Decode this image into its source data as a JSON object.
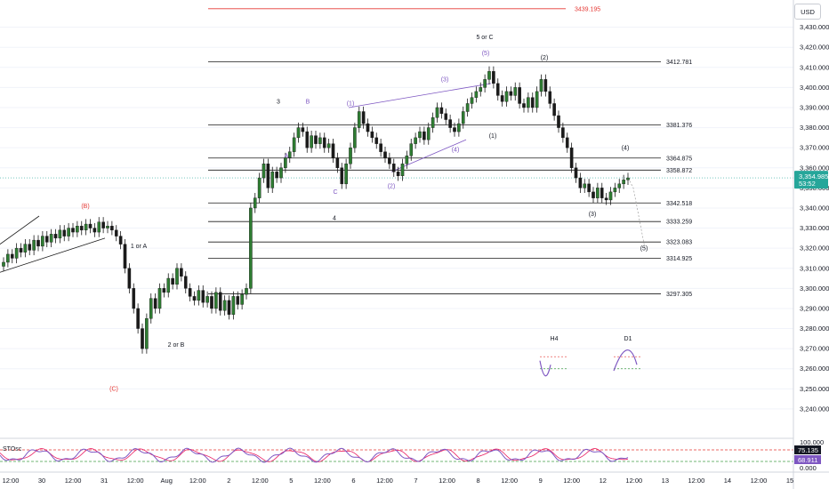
{
  "colors": {
    "up": "#1a1a1a",
    "down": "#1a1a1a",
    "up_fill": "#2e7d32",
    "level": "#1a1a1a",
    "red_level": "#e53935",
    "wave_black": "#131722",
    "wave_purple": "#7e57c2",
    "wave_red": "#e53935",
    "price_tag": "#26a69a",
    "osc_line": "#7e57c2",
    "osc_signal": "#e91e63",
    "osc_upper": "#e53935",
    "osc_lower": "#43a047"
  },
  "currency": "USD",
  "chart_data": {
    "type": "candlestick",
    "title": "",
    "xlabel": "",
    "ylabel": "",
    "ylim": [
      3232,
      3440
    ],
    "price_ticks": [
      "3,430.000",
      "3,420.000",
      "3,410.000",
      "3,400.000",
      "3,390.000",
      "3,380.000",
      "3,370.000",
      "3,360.000",
      "3,350.000",
      "3,340.000",
      "3,330.000",
      "3,320.000",
      "3,310.000",
      "3,300.000",
      "3,290.000",
      "3,280.000",
      "3,270.000",
      "3,260.000",
      "3,250.000",
      "3,240.000"
    ],
    "price_tick_values": [
      3430,
      3420,
      3410,
      3400,
      3390,
      3380,
      3370,
      3360,
      3350,
      3340,
      3330,
      3320,
      3310,
      3300,
      3290,
      3280,
      3270,
      3260,
      3250,
      3240
    ],
    "time_ticks": [
      "12:00",
      "30",
      "12:00",
      "31",
      "12:00",
      "Aug",
      "12:00",
      "2",
      "12:00",
      "5",
      "12:00",
      "6",
      "12:00",
      "7",
      "12:00",
      "8",
      "12:00",
      "9",
      "12:00",
      "12",
      "12:00",
      "13",
      "12:00",
      "14",
      "12:00",
      "15"
    ],
    "current_price": "3,354.985",
    "current_price_value": 3354.985,
    "countdown": "53:52",
    "levels": [
      {
        "label": "3439.195",
        "value": 3439.195,
        "color": "red"
      },
      {
        "label": "3412.781",
        "value": 3412.781
      },
      {
        "label": "3381.376",
        "value": 3381.376
      },
      {
        "label": "3364.875",
        "value": 3364.875
      },
      {
        "label": "3358.872",
        "value": 3358.872
      },
      {
        "label": "3342.518",
        "value": 3342.518
      },
      {
        "label": "3333.259",
        "value": 3333.259
      },
      {
        "label": "3323.083",
        "value": 3323.083
      },
      {
        "label": "3314.925",
        "value": 3314.925
      },
      {
        "label": "3297.305",
        "value": 3297.305
      }
    ],
    "closes": [
      3313,
      3317,
      3315,
      3320,
      3318,
      3322,
      3319,
      3324,
      3321,
      3326,
      3323,
      3327,
      3325,
      3329,
      3326,
      3330,
      3328,
      3331,
      3329,
      3332,
      3330,
      3328,
      3333,
      3330,
      3331,
      3329,
      3326,
      3322,
      3310,
      3300,
      3290,
      3280,
      3270,
      3285,
      3295,
      3290,
      3300,
      3298,
      3305,
      3302,
      3310,
      3306,
      3300,
      3296,
      3294,
      3299,
      3293,
      3296,
      3290,
      3298,
      3289,
      3294,
      3287,
      3296,
      3292,
      3297,
      3300,
      3340,
      3345,
      3355,
      3362,
      3350,
      3358,
      3355,
      3360,
      3365,
      3368,
      3375,
      3380,
      3378,
      3370,
      3376,
      3372,
      3375,
      3370,
      3372,
      3365,
      3360,
      3352,
      3362,
      3370,
      3380,
      3388,
      3382,
      3378,
      3375,
      3372,
      3368,
      3365,
      3362,
      3358,
      3356,
      3362,
      3366,
      3372,
      3375,
      3378,
      3374,
      3380,
      3385,
      3390,
      3387,
      3384,
      3380,
      3378,
      3382,
      3388,
      3392,
      3395,
      3398,
      3400,
      3404,
      3408,
      3402,
      3396,
      3393,
      3398,
      3396,
      3400,
      3392,
      3390,
      3395,
      3390,
      3398,
      3404,
      3398,
      3392,
      3386,
      3380,
      3375,
      3370,
      3360,
      3355,
      3350,
      3352,
      3348,
      3345,
      3350,
      3345,
      3344,
      3348,
      3350,
      3352,
      3354,
      3355
    ],
    "wave_labels": [
      {
        "text": "(B)",
        "color": "red"
      },
      {
        "text": "(C)",
        "color": "red"
      },
      {
        "text": "1 or A",
        "color": "black"
      },
      {
        "text": "2 or B",
        "color": "black"
      },
      {
        "text": "3",
        "color": "black"
      },
      {
        "text": "4",
        "color": "black"
      },
      {
        "text": "A",
        "color": "purple"
      },
      {
        "text": "B",
        "color": "purple"
      },
      {
        "text": "C",
        "color": "purple"
      },
      {
        "text": "(1)",
        "color": "purple"
      },
      {
        "text": "(2)",
        "color": "purple"
      },
      {
        "text": "(3)",
        "color": "purple"
      },
      {
        "text": "(4)",
        "color": "purple"
      },
      {
        "text": "(5)",
        "color": "purple"
      },
      {
        "text": "5 or C",
        "color": "black"
      },
      {
        "text": "(1)",
        "color": "black"
      },
      {
        "text": "(2)",
        "color": "black"
      },
      {
        "text": "(3)",
        "color": "black"
      },
      {
        "text": "(4)",
        "color": "black"
      },
      {
        "text": "(5)",
        "color": "black"
      }
    ],
    "mini_labels": {
      "left": "H4",
      "right": "D1"
    },
    "oscillator": {
      "name": "STOsc",
      "ticks": [
        "100.000",
        "0.000"
      ],
      "value_a": "75.135",
      "value_b": "68.911"
    }
  }
}
